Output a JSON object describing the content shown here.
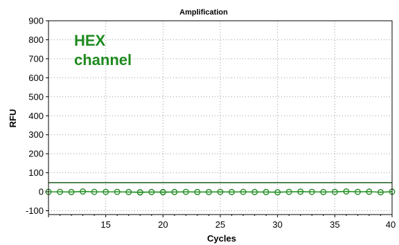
{
  "chart_data": {
    "type": "line",
    "title": "Amplification",
    "xlabel": "Cycles",
    "ylabel": "RFU",
    "xlim": [
      10,
      40
    ],
    "ylim": [
      -120,
      900
    ],
    "x_ticks": [
      15,
      20,
      25,
      30,
      35,
      40
    ],
    "y_ticks": [
      -100,
      0,
      100,
      200,
      300,
      400,
      500,
      600,
      700,
      800,
      900
    ],
    "grid": true,
    "annotations": [
      "HEX",
      "channel"
    ],
    "threshold": {
      "value": 48,
      "color": "#1a5c1a"
    },
    "colors": {
      "series": "#2a9a2a",
      "marker": "#2a8a2a"
    },
    "series": [
      {
        "x": [
          10,
          11,
          12,
          13,
          14,
          15,
          16,
          17,
          18,
          19,
          20,
          21,
          22,
          23,
          24,
          25,
          26,
          27,
          28,
          29,
          30,
          31,
          32,
          33,
          34,
          35,
          36,
          37,
          38,
          39,
          40
        ],
        "values": [
          0,
          -1,
          -2,
          1,
          -1,
          0,
          -1,
          -2,
          -4,
          -2,
          -3,
          -2,
          -1,
          -2,
          -2,
          -1,
          -2,
          -1,
          -2,
          -2,
          -3,
          -1,
          0,
          -1,
          -2,
          -1,
          1,
          -1,
          0,
          -2,
          1
        ]
      },
      {
        "x": [
          10,
          11,
          12,
          13,
          14,
          15,
          16,
          17,
          18,
          19,
          20,
          21,
          22,
          23,
          24,
          25,
          26,
          27,
          28,
          29,
          30,
          31,
          32,
          33,
          34,
          35,
          36,
          37,
          38,
          39,
          40
        ],
        "values": [
          -1,
          0,
          -1,
          2,
          0,
          -1,
          0,
          -1,
          -2,
          -1,
          -1,
          -1,
          0,
          -1,
          -1,
          0,
          -1,
          0,
          -1,
          -1,
          -2,
          0,
          1,
          0,
          -1,
          0,
          2,
          0,
          1,
          -3,
          0
        ]
      }
    ]
  }
}
